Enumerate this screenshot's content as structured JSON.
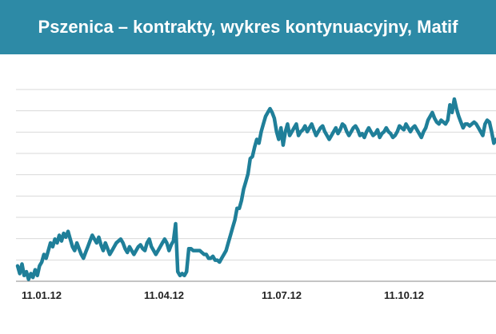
{
  "title": "Pszenica – kontrakty, wykres kontynuacyjny, Matif",
  "colors": {
    "header_bg": "#2d8aa6",
    "line": "#1f7f99",
    "grid": "#d9d9d9",
    "text": "#222222"
  },
  "chart_data": {
    "type": "line",
    "title": "Pszenica – kontrakty, wykres kontynuacyjny, Matif",
    "xlabel": "",
    "ylabel": "",
    "x_tick_labels": [
      "11.01.12",
      "11.04.12",
      "11.07.12",
      "11.10.12"
    ],
    "y_tick_labels": [
      "",
      "",
      "",
      "",
      "",
      "",
      "",
      "",
      "",
      ""
    ],
    "grid": "horizontal",
    "series": [
      {
        "values": [
          0.92,
          0.96,
          0.91,
          0.97,
          0.95,
          0.99,
          0.96,
          0.98,
          0.94,
          0.97,
          0.92,
          0.9,
          0.86,
          0.88,
          0.84,
          0.8,
          0.82,
          0.78,
          0.8,
          0.76,
          0.79,
          0.75,
          0.77,
          0.74,
          0.78,
          0.82,
          0.84,
          0.8,
          0.83,
          0.86,
          0.88,
          0.85,
          0.82,
          0.79,
          0.76,
          0.78,
          0.8,
          0.77,
          0.81,
          0.84,
          0.8,
          0.83,
          0.86,
          0.84,
          0.82,
          0.8,
          0.79,
          0.78,
          0.8,
          0.83,
          0.85,
          0.82,
          0.84,
          0.86,
          0.84,
          0.82,
          0.81,
          0.83,
          0.84,
          0.8,
          0.78,
          0.82,
          0.84,
          0.86,
          0.84,
          0.82,
          0.8,
          0.78,
          0.8,
          0.84,
          0.81,
          0.79,
          0.7,
          0.95,
          0.97,
          0.96,
          0.97,
          0.95,
          0.83,
          0.83,
          0.84,
          0.84,
          0.84,
          0.84,
          0.85,
          0.86,
          0.86,
          0.88,
          0.88,
          0.87,
          0.89,
          0.89,
          0.9,
          0.88,
          0.86,
          0.84,
          0.8,
          0.76,
          0.72,
          0.68,
          0.62,
          0.62,
          0.58,
          0.52,
          0.48,
          0.44,
          0.36,
          0.35,
          0.3,
          0.26,
          0.28,
          0.22,
          0.18,
          0.14,
          0.12,
          0.1,
          0.12,
          0.15,
          0.22,
          0.26,
          0.2,
          0.29,
          0.22,
          0.18,
          0.24,
          0.22,
          0.2,
          0.18,
          0.24,
          0.22,
          0.21,
          0.19,
          0.22,
          0.2,
          0.18,
          0.21,
          0.24,
          0.22,
          0.2,
          0.19,
          0.22,
          0.24,
          0.26,
          0.24,
          0.22,
          0.2,
          0.23,
          0.21,
          0.18,
          0.19,
          0.22,
          0.24,
          0.22,
          0.2,
          0.19,
          0.21,
          0.24,
          0.23,
          0.25,
          0.22,
          0.2,
          0.22,
          0.24,
          0.23,
          0.21,
          0.25,
          0.23,
          0.22,
          0.2,
          0.22,
          0.23,
          0.25,
          0.24,
          0.22,
          0.19,
          0.2,
          0.21,
          0.18,
          0.2,
          0.22,
          0.2,
          0.19,
          0.21,
          0.23,
          0.25,
          0.22,
          0.2,
          0.16,
          0.14,
          0.12,
          0.15,
          0.17,
          0.18,
          0.16,
          0.17,
          0.18,
          0.16,
          0.08,
          0.12,
          0.05,
          0.1,
          0.14,
          0.17,
          0.2,
          0.18,
          0.18,
          0.19,
          0.18,
          0.17,
          0.18,
          0.2,
          0.22,
          0.24,
          0.18,
          0.16,
          0.17,
          0.22,
          0.28,
          0.26
        ]
      }
    ]
  }
}
